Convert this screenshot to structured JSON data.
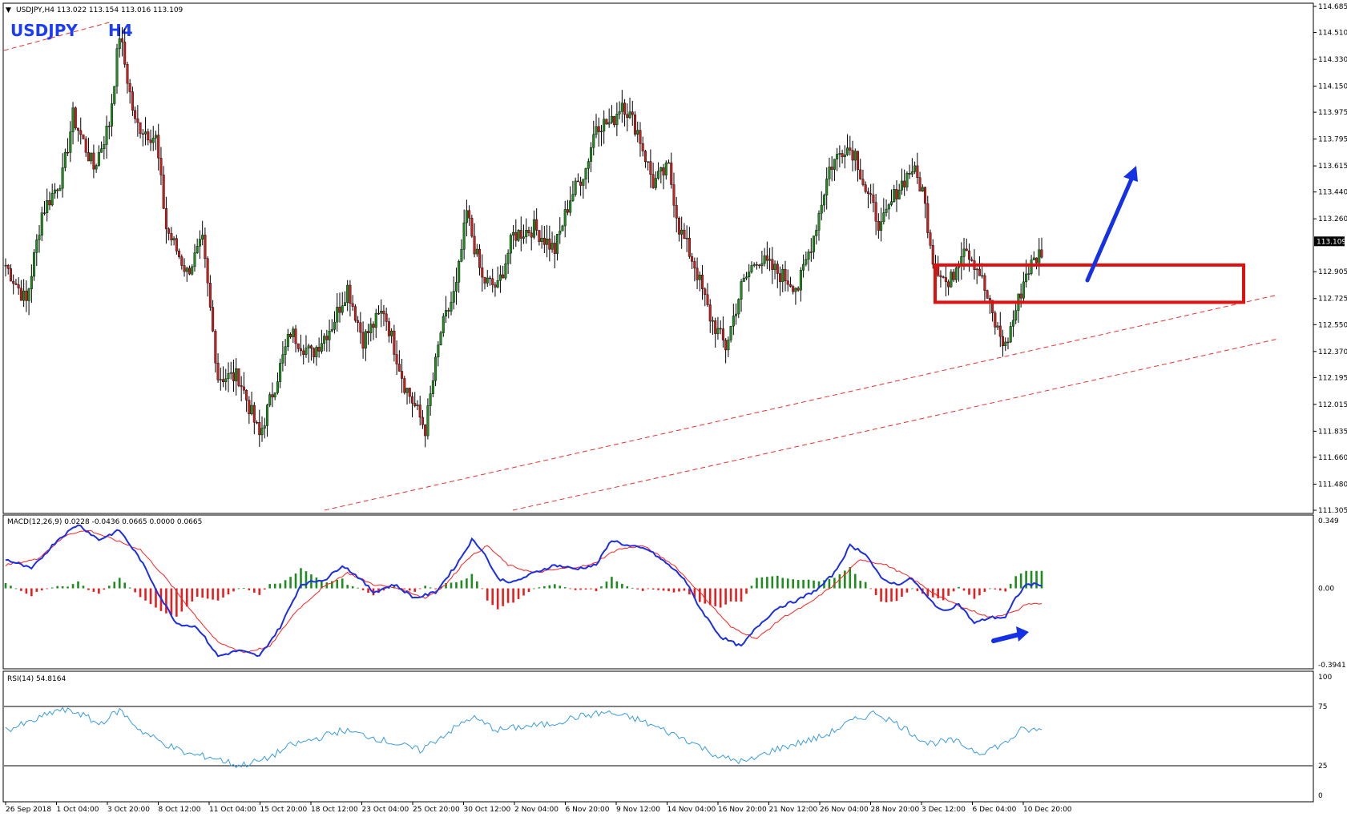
{
  "colors": {
    "bull_candle": "#1e8c1e",
    "bear_candle": "#c81e1e",
    "wick": "#000000",
    "macd_line": "#1a2ee6",
    "signal_line": "#ff2020",
    "hist_pos": "#1e8c1e",
    "hist_neg": "#e61e1e",
    "rsi_line": "#3a9de0",
    "trendline": "#e83030",
    "zone_box": "#e01010",
    "arrow": "#1431e6",
    "label": "#1a3cff"
  },
  "header": {
    "symbol_line": "USDJPY,H4  113.022 113.154 113.016 113.109",
    "big_symbol": "USDJPY",
    "big_timeframe": "H4"
  },
  "chart_data": [
    {
      "type": "candlestick",
      "title": "USDJPY,H4",
      "ohlc_header": {
        "open": 113.022,
        "high": 113.154,
        "low": 113.016,
        "close": 113.109
      },
      "current_price": "113.109",
      "y_ticks": [
        "114.685",
        "114.510",
        "114.330",
        "114.150",
        "113.975",
        "113.795",
        "113.615",
        "113.440",
        "113.260",
        "112.905",
        "112.725",
        "112.550",
        "112.370",
        "112.195",
        "112.015",
        "111.835",
        "111.660",
        "111.480",
        "111.305"
      ],
      "ylim": [
        111.305,
        114.685
      ],
      "x_ticks": [
        "26 Sep 2018",
        "1 Oct 04:00",
        "3 Oct 20:00",
        "8 Oct 12:00",
        "11 Oct 04:00",
        "15 Oct 20:00",
        "18 Oct 12:00",
        "23 Oct 04:00",
        "25 Oct 20:00",
        "30 Oct 12:00",
        "2 Nov 04:00",
        "6 Nov 20:00",
        "9 Nov 12:00",
        "14 Nov 04:00",
        "16 Nov 20:00",
        "21 Nov 12:00",
        "26 Nov 04:00",
        "28 Nov 20:00",
        "3 Dec 12:00",
        "6 Dec 04:00",
        "10 Dec 20:00"
      ],
      "close_path_key_points": [
        [
          0,
          112.95
        ],
        [
          8,
          112.7
        ],
        [
          14,
          113.3
        ],
        [
          22,
          113.55
        ],
        [
          26,
          113.95
        ],
        [
          34,
          113.6
        ],
        [
          40,
          113.9
        ],
        [
          44,
          114.5
        ],
        [
          50,
          113.9
        ],
        [
          58,
          113.8
        ],
        [
          62,
          113.2
        ],
        [
          70,
          112.9
        ],
        [
          76,
          113.1
        ],
        [
          82,
          112.2
        ],
        [
          90,
          112.2
        ],
        [
          98,
          111.8
        ],
        [
          104,
          112.15
        ],
        [
          110,
          112.5
        ],
        [
          118,
          112.35
        ],
        [
          126,
          112.55
        ],
        [
          132,
          112.8
        ],
        [
          138,
          112.45
        ],
        [
          146,
          112.65
        ],
        [
          154,
          112.15
        ],
        [
          162,
          111.85
        ],
        [
          168,
          112.5
        ],
        [
          174,
          112.8
        ],
        [
          178,
          113.3
        ],
        [
          184,
          112.85
        ],
        [
          190,
          112.8
        ],
        [
          196,
          113.15
        ],
        [
          204,
          113.2
        ],
        [
          212,
          113.05
        ],
        [
          218,
          113.4
        ],
        [
          224,
          113.6
        ],
        [
          228,
          113.9
        ],
        [
          234,
          113.9
        ],
        [
          238,
          114.05
        ],
        [
          244,
          113.85
        ],
        [
          250,
          113.5
        ],
        [
          256,
          113.6
        ],
        [
          260,
          113.2
        ],
        [
          266,
          112.95
        ],
        [
          272,
          112.6
        ],
        [
          278,
          112.4
        ],
        [
          284,
          112.8
        ],
        [
          290,
          113.0
        ],
        [
          298,
          112.9
        ],
        [
          306,
          112.8
        ],
        [
          312,
          113.15
        ],
        [
          318,
          113.6
        ],
        [
          324,
          113.75
        ],
        [
          328,
          113.7
        ],
        [
          332,
          113.45
        ],
        [
          338,
          113.2
        ],
        [
          344,
          113.45
        ],
        [
          350,
          113.6
        ],
        [
          354,
          113.45
        ],
        [
          358,
          113.0
        ],
        [
          364,
          112.8
        ],
        [
          370,
          113.1
        ],
        [
          376,
          112.9
        ],
        [
          382,
          112.55
        ],
        [
          386,
          112.4
        ],
        [
          390,
          112.65
        ],
        [
          394,
          112.9
        ],
        [
          400,
          113.05
        ]
      ],
      "support_zone": {
        "low": 112.7,
        "high": 112.95
      },
      "trendlines": "two dashed ascending lines below price",
      "annotation_arrow": "blue arrow pointing upward from support zone"
    },
    {
      "type": "line",
      "title": "MACD(12,26,9) 0.0228 -0.0436 0.0665 0.0000 0.0665",
      "y_ticks": [
        "0.349",
        "0.00",
        "-0.3941"
      ],
      "ylim": [
        -0.3941,
        0.349
      ],
      "series": [
        {
          "name": "MACD",
          "key_points": [
            [
              0,
              0.15
            ],
            [
              10,
              0.1
            ],
            [
              20,
              0.25
            ],
            [
              28,
              0.33
            ],
            [
              36,
              0.25
            ],
            [
              44,
              0.3
            ],
            [
              52,
              0.15
            ],
            [
              60,
              -0.05
            ],
            [
              66,
              -0.18
            ],
            [
              74,
              -0.2
            ],
            [
              82,
              -0.35
            ],
            [
              90,
              -0.32
            ],
            [
              98,
              -0.35
            ],
            [
              106,
              -0.2
            ],
            [
              114,
              0.02
            ],
            [
              124,
              0.05
            ],
            [
              130,
              0.12
            ],
            [
              136,
              0.06
            ],
            [
              142,
              -0.02
            ],
            [
              150,
              0.02
            ],
            [
              158,
              -0.05
            ],
            [
              166,
              -0.02
            ],
            [
              174,
              0.12
            ],
            [
              180,
              0.25
            ],
            [
              184,
              0.2
            ],
            [
              190,
              0.05
            ],
            [
              196,
              0.03
            ],
            [
              204,
              0.08
            ],
            [
              212,
              0.12
            ],
            [
              220,
              0.1
            ],
            [
              228,
              0.12
            ],
            [
              234,
              0.25
            ],
            [
              240,
              0.22
            ],
            [
              248,
              0.2
            ],
            [
              256,
              0.12
            ],
            [
              262,
              0.05
            ],
            [
              268,
              -0.1
            ],
            [
              276,
              -0.25
            ],
            [
              284,
              -0.3
            ],
            [
              290,
              -0.2
            ],
            [
              298,
              -0.1
            ],
            [
              306,
              -0.06
            ],
            [
              314,
              0.0
            ],
            [
              320,
              0.08
            ],
            [
              326,
              0.22
            ],
            [
              332,
              0.18
            ],
            [
              338,
              0.05
            ],
            [
              344,
              0.02
            ],
            [
              350,
              0.05
            ],
            [
              356,
              -0.05
            ],
            [
              362,
              -0.12
            ],
            [
              368,
              -0.08
            ],
            [
              374,
              -0.18
            ],
            [
              380,
              -0.15
            ],
            [
              386,
              -0.15
            ],
            [
              390,
              -0.05
            ],
            [
              394,
              0.02
            ]
          ]
        },
        {
          "name": "Signal",
          "key_points": [
            [
              0,
              0.12
            ],
            [
              12,
              0.15
            ],
            [
              24,
              0.28
            ],
            [
              32,
              0.3
            ],
            [
              42,
              0.25
            ],
            [
              52,
              0.2
            ],
            [
              62,
              0.05
            ],
            [
              72,
              -0.12
            ],
            [
              82,
              -0.28
            ],
            [
              92,
              -0.33
            ],
            [
              102,
              -0.3
            ],
            [
              112,
              -0.12
            ],
            [
              122,
              0.0
            ],
            [
              132,
              0.08
            ],
            [
              142,
              0.02
            ],
            [
              152,
              0.0
            ],
            [
              162,
              -0.05
            ],
            [
              170,
              0.02
            ],
            [
              178,
              0.15
            ],
            [
              186,
              0.22
            ],
            [
              194,
              0.12
            ],
            [
              204,
              0.08
            ],
            [
              214,
              0.1
            ],
            [
              226,
              0.12
            ],
            [
              236,
              0.2
            ],
            [
              246,
              0.22
            ],
            [
              258,
              0.12
            ],
            [
              270,
              -0.05
            ],
            [
              280,
              -0.2
            ],
            [
              290,
              -0.26
            ],
            [
              300,
              -0.15
            ],
            [
              310,
              -0.08
            ],
            [
              320,
              0.02
            ],
            [
              330,
              0.15
            ],
            [
              340,
              0.12
            ],
            [
              350,
              0.05
            ],
            [
              360,
              -0.04
            ],
            [
              370,
              -0.1
            ],
            [
              380,
              -0.15
            ],
            [
              390,
              -0.12
            ],
            [
              394,
              -0.08
            ]
          ]
        },
        {
          "name": "Histogram",
          "description": "green bars above zero, red bars below zero"
        }
      ]
    },
    {
      "type": "line",
      "title": "RSI(14) 54.8164",
      "y_ticks": [
        "100",
        "75",
        "25",
        "0"
      ],
      "ylim": [
        0,
        100
      ],
      "levels": [
        75,
        25
      ],
      "series": [
        {
          "name": "RSI(14)",
          "key_points": [
            [
              0,
              55
            ],
            [
              10,
              62
            ],
            [
              20,
              72
            ],
            [
              28,
              70
            ],
            [
              36,
              60
            ],
            [
              44,
              72
            ],
            [
              52,
              55
            ],
            [
              60,
              45
            ],
            [
              70,
              35
            ],
            [
              80,
              32
            ],
            [
              90,
              25
            ],
            [
              100,
              30
            ],
            [
              110,
              42
            ],
            [
              120,
              48
            ],
            [
              130,
              55
            ],
            [
              140,
              50
            ],
            [
              150,
              44
            ],
            [
              160,
              38
            ],
            [
              170,
              52
            ],
            [
              180,
              66
            ],
            [
              190,
              55
            ],
            [
              200,
              58
            ],
            [
              210,
              60
            ],
            [
              220,
              66
            ],
            [
              232,
              70
            ],
            [
              244,
              64
            ],
            [
              254,
              55
            ],
            [
              264,
              46
            ],
            [
              276,
              32
            ],
            [
              286,
              28
            ],
            [
              296,
              38
            ],
            [
              306,
              44
            ],
            [
              316,
              50
            ],
            [
              326,
              62
            ],
            [
              336,
              70
            ],
            [
              346,
              58
            ],
            [
              356,
              44
            ],
            [
              366,
              46
            ],
            [
              376,
              36
            ],
            [
              386,
              44
            ],
            [
              392,
              55
            ],
            [
              396,
              55
            ]
          ]
        }
      ]
    }
  ]
}
